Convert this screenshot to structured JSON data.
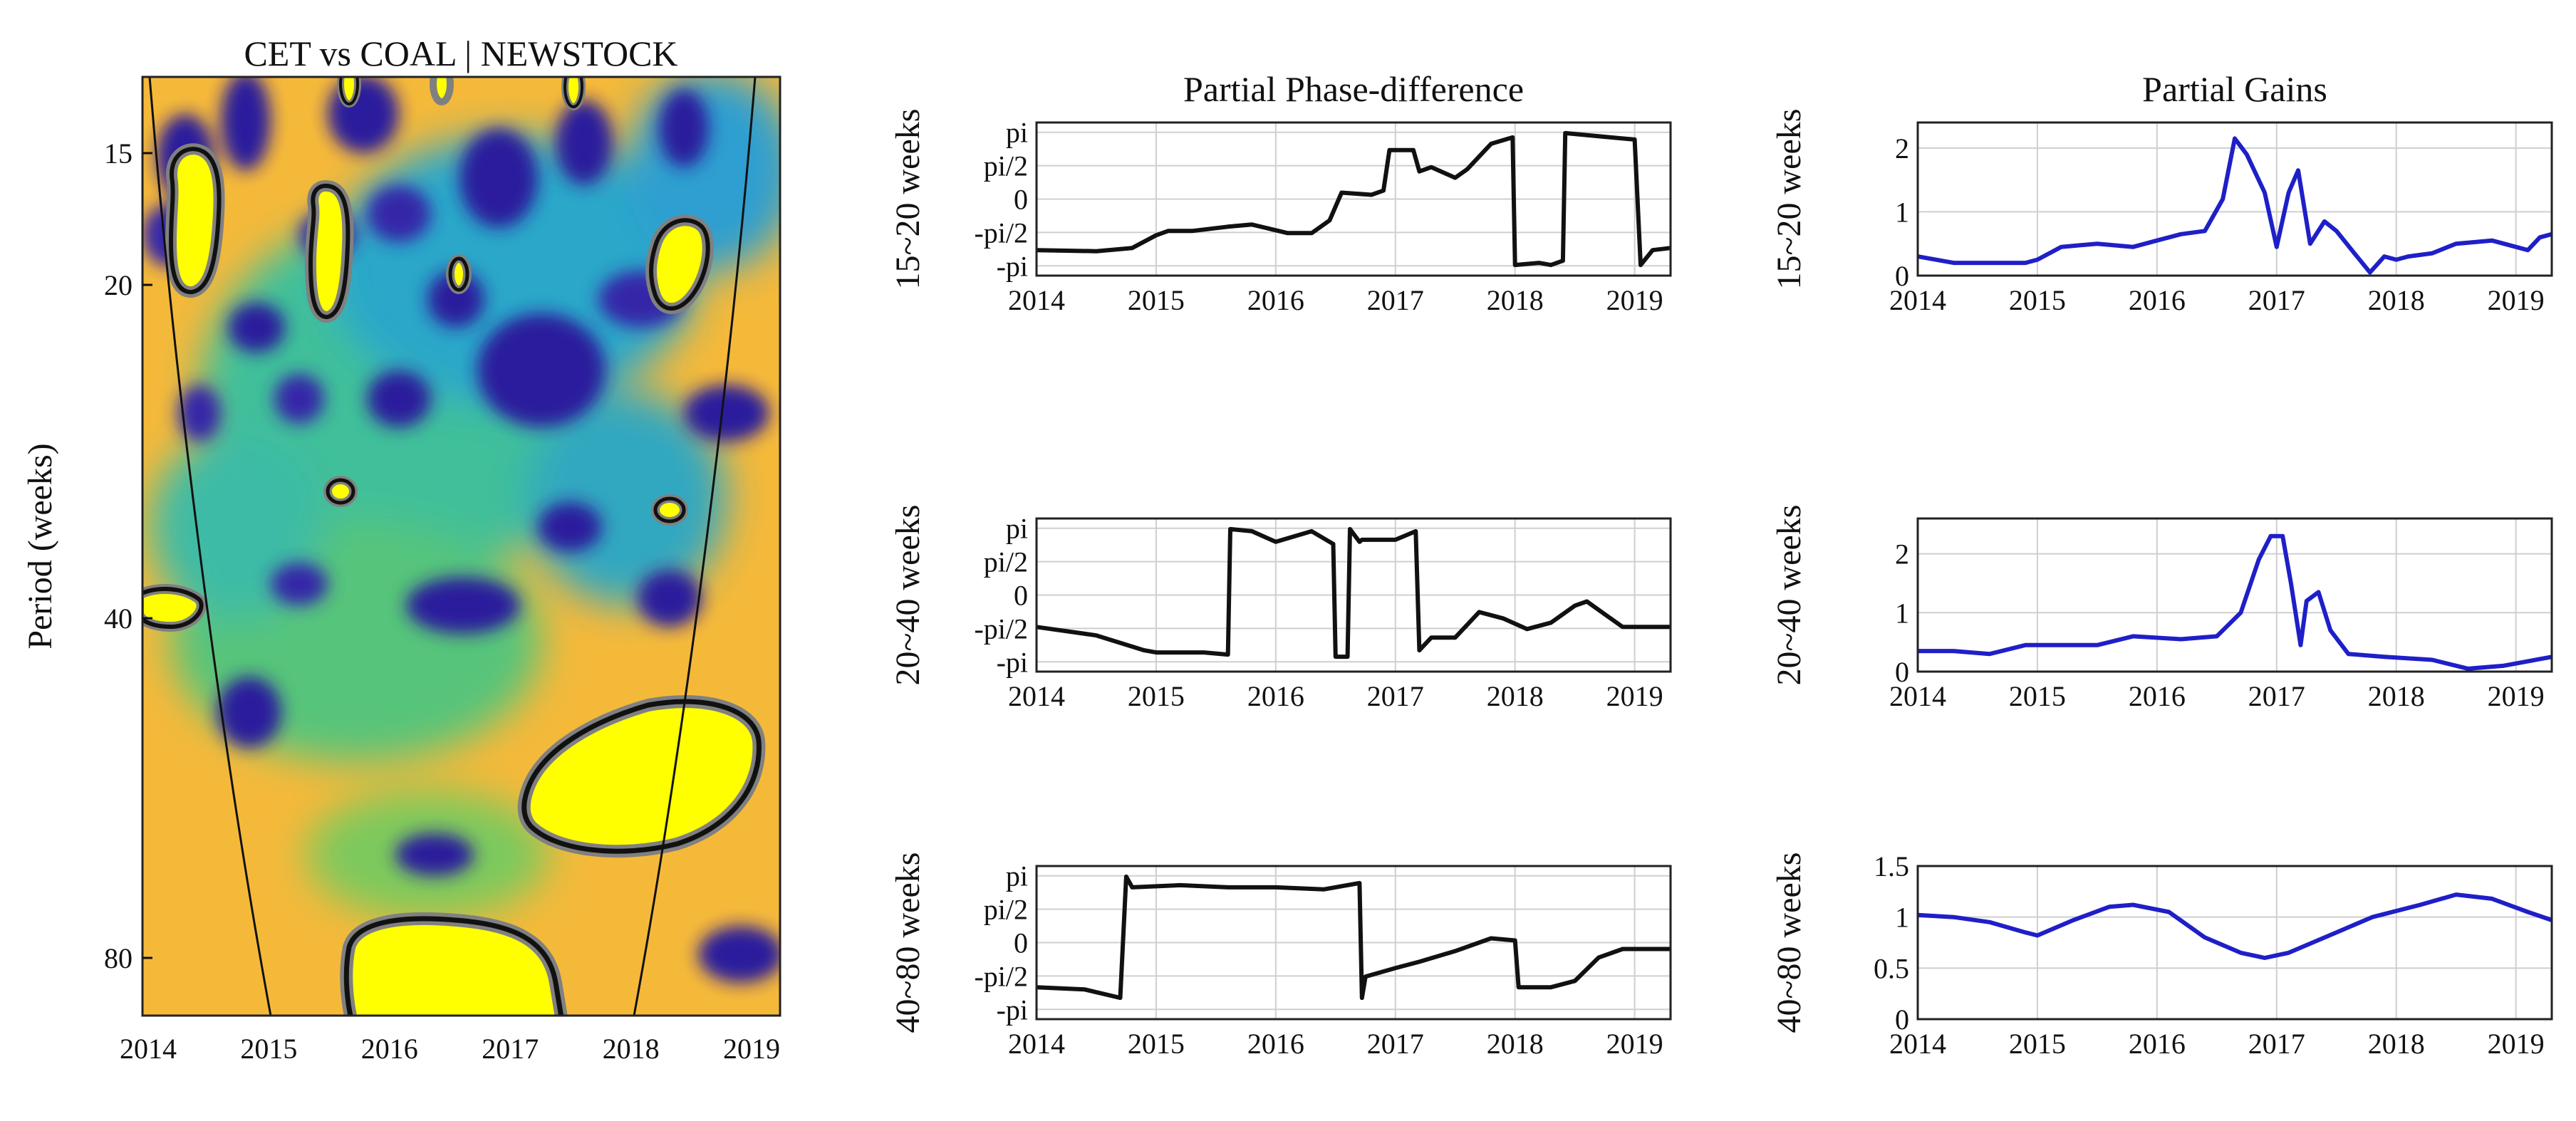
{
  "colors": {
    "phase_line": "#111111",
    "gain_line": "#1f1fc8",
    "grid": "#cfcfcf",
    "wavelet_background": "#f5b93a",
    "wavelet_high": "#ffff00",
    "wavelet_low": "#2a1f9c",
    "wavelet_mid": "#1b8fd6",
    "significance_contour": "#111111",
    "significance_halo": "#808080"
  },
  "wavelet": {
    "title": "CET vs COAL | NEWSTOCK",
    "ylabel": "Period (weeks)",
    "yticks": [
      "15",
      "20",
      "40",
      "80"
    ],
    "xticks": [
      "2014",
      "2015",
      "2016",
      "2017",
      "2018",
      "2019"
    ]
  },
  "chart_data": [
    {
      "type": "line",
      "title": "Partial Phase-difference",
      "ylabel": "15~20 weeks",
      "x_ticks": [
        "2014",
        "2015",
        "2016",
        "2017",
        "2018",
        "2019"
      ],
      "y_ticks": [
        "pi",
        "pi/2",
        "0",
        "-pi/2",
        "-pi"
      ],
      "xlim": [
        2014,
        2019.3
      ],
      "ylim": [
        -3.6,
        3.6
      ],
      "x": [
        2014.0,
        2014.5,
        2014.8,
        2015.0,
        2015.1,
        2015.3,
        2015.6,
        2015.8,
        2016.1,
        2016.3,
        2016.45,
        2016.55,
        2016.8,
        2016.9,
        2016.95,
        2017.15,
        2017.2,
        2017.3,
        2017.5,
        2017.6,
        2017.8,
        2017.98,
        2018.0,
        2018.2,
        2018.3,
        2018.4,
        2018.42,
        2018.8,
        2019.0,
        2019.05,
        2019.15,
        2019.3
      ],
      "y": [
        -2.4,
        -2.45,
        -2.3,
        -1.7,
        -1.5,
        -1.5,
        -1.3,
        -1.2,
        -1.6,
        -1.6,
        -1.0,
        0.3,
        0.2,
        0.4,
        2.3,
        2.3,
        1.3,
        1.5,
        1.0,
        1.4,
        2.6,
        2.9,
        -3.1,
        -3.0,
        -3.1,
        -2.9,
        3.1,
        2.9,
        2.8,
        -3.1,
        -2.4,
        -2.3
      ]
    },
    {
      "type": "line",
      "title": "Partial Gains",
      "ylabel": "15~20 weeks",
      "x_ticks": [
        "2014",
        "2015",
        "2016",
        "2017",
        "2018",
        "2019"
      ],
      "y_ticks": [
        "0",
        "1",
        "2"
      ],
      "xlim": [
        2014,
        2019.3
      ],
      "ylim": [
        0,
        2.4
      ],
      "x": [
        2014.0,
        2014.3,
        2014.9,
        2015.0,
        2015.2,
        2015.5,
        2015.8,
        2016.0,
        2016.2,
        2016.4,
        2016.55,
        2016.65,
        2016.75,
        2016.9,
        2017.0,
        2017.1,
        2017.18,
        2017.28,
        2017.4,
        2017.5,
        2017.65,
        2017.78,
        2017.9,
        2018.0,
        2018.1,
        2018.3,
        2018.5,
        2018.8,
        2019.0,
        2019.1,
        2019.2,
        2019.3
      ],
      "y": [
        0.3,
        0.2,
        0.2,
        0.25,
        0.45,
        0.5,
        0.45,
        0.55,
        0.65,
        0.7,
        1.2,
        2.15,
        1.9,
        1.3,
        0.45,
        1.3,
        1.65,
        0.5,
        0.85,
        0.7,
        0.35,
        0.05,
        0.3,
        0.25,
        0.3,
        0.35,
        0.5,
        0.55,
        0.45,
        0.4,
        0.6,
        0.65
      ]
    },
    {
      "type": "line",
      "title": "",
      "ylabel": "20~40 weeks",
      "x_ticks": [
        "2014",
        "2015",
        "2016",
        "2017",
        "2018",
        "2019"
      ],
      "y_ticks": [
        "pi",
        "pi/2",
        "0",
        "-pi/2",
        "-pi"
      ],
      "xlim": [
        2014,
        2019.3
      ],
      "ylim": [
        -3.6,
        3.6
      ],
      "x": [
        2014.0,
        2014.5,
        2014.9,
        2015.0,
        2015.4,
        2015.6,
        2015.62,
        2015.8,
        2016.0,
        2016.3,
        2016.48,
        2016.5,
        2016.6,
        2016.62,
        2016.7,
        2016.72,
        2017.0,
        2017.17,
        2017.2,
        2017.3,
        2017.5,
        2017.7,
        2017.9,
        2018.1,
        2018.3,
        2018.5,
        2018.6,
        2018.75,
        2018.9,
        2019.3
      ],
      "y": [
        -1.5,
        -1.9,
        -2.6,
        -2.7,
        -2.7,
        -2.8,
        3.1,
        3.0,
        2.5,
        3.0,
        2.4,
        -2.9,
        -2.9,
        3.1,
        2.5,
        2.6,
        2.6,
        3.0,
        -2.6,
        -2.0,
        -2.0,
        -0.8,
        -1.1,
        -1.6,
        -1.3,
        -0.5,
        -0.3,
        -0.9,
        -1.5,
        -1.5
      ]
    },
    {
      "type": "line",
      "title": "",
      "ylabel": "20~40 weeks",
      "x_ticks": [
        "2014",
        "2015",
        "2016",
        "2017",
        "2018",
        "2019"
      ],
      "y_ticks": [
        "0",
        "1",
        "2"
      ],
      "xlim": [
        2014,
        2019.3
      ],
      "ylim": [
        0,
        2.6
      ],
      "x": [
        2014.0,
        2014.3,
        2014.6,
        2014.9,
        2015.2,
        2015.5,
        2015.8,
        2016.2,
        2016.5,
        2016.7,
        2016.85,
        2016.95,
        2017.05,
        2017.12,
        2017.2,
        2017.25,
        2017.35,
        2017.45,
        2017.6,
        2017.9,
        2018.3,
        2018.6,
        2018.9,
        2019.3
      ],
      "y": [
        0.35,
        0.35,
        0.3,
        0.45,
        0.45,
        0.45,
        0.6,
        0.55,
        0.6,
        1.0,
        1.9,
        2.3,
        2.3,
        1.5,
        0.45,
        1.2,
        1.35,
        0.7,
        0.3,
        0.25,
        0.2,
        0.05,
        0.1,
        0.25
      ]
    },
    {
      "type": "line",
      "title": "",
      "ylabel": "40~80 weeks",
      "x_ticks": [
        "2014",
        "2015",
        "2016",
        "2017",
        "2018",
        "2019"
      ],
      "y_ticks": [
        "pi",
        "pi/2",
        "0",
        "-pi/2",
        "-pi"
      ],
      "xlim": [
        2014,
        2019.3
      ],
      "ylim": [
        -3.6,
        3.6
      ],
      "x": [
        2014.0,
        2014.4,
        2014.7,
        2014.75,
        2014.8,
        2015.2,
        2015.6,
        2016.0,
        2016.4,
        2016.7,
        2016.72,
        2016.75,
        2017.0,
        2017.2,
        2017.5,
        2017.8,
        2018.0,
        2018.03,
        2018.3,
        2018.5,
        2018.7,
        2018.9,
        2019.3
      ],
      "y": [
        -2.1,
        -2.2,
        -2.6,
        3.1,
        2.6,
        2.7,
        2.6,
        2.6,
        2.5,
        2.8,
        -2.6,
        -1.6,
        -1.2,
        -0.9,
        -0.4,
        0.2,
        0.1,
        -2.1,
        -2.1,
        -1.8,
        -0.7,
        -0.3,
        -0.3
      ]
    },
    {
      "type": "line",
      "title": "",
      "ylabel": "40~80 weeks",
      "x_ticks": [
        "2014",
        "2015",
        "2016",
        "2017",
        "2018",
        "2019"
      ],
      "y_ticks": [
        "0",
        "0.5",
        "1",
        "1.5"
      ],
      "xlim": [
        2014,
        2019.3
      ],
      "ylim": [
        0,
        1.5
      ],
      "x": [
        2014.0,
        2014.3,
        2014.6,
        2014.9,
        2015.0,
        2015.3,
        2015.6,
        2015.8,
        2016.1,
        2016.4,
        2016.7,
        2016.9,
        2017.1,
        2017.5,
        2017.8,
        2018.2,
        2018.5,
        2018.8,
        2019.1,
        2019.3
      ],
      "y": [
        1.02,
        1.0,
        0.95,
        0.85,
        0.82,
        0.97,
        1.1,
        1.12,
        1.05,
        0.8,
        0.65,
        0.6,
        0.65,
        0.85,
        1.0,
        1.12,
        1.22,
        1.18,
        1.05,
        0.97
      ]
    }
  ]
}
